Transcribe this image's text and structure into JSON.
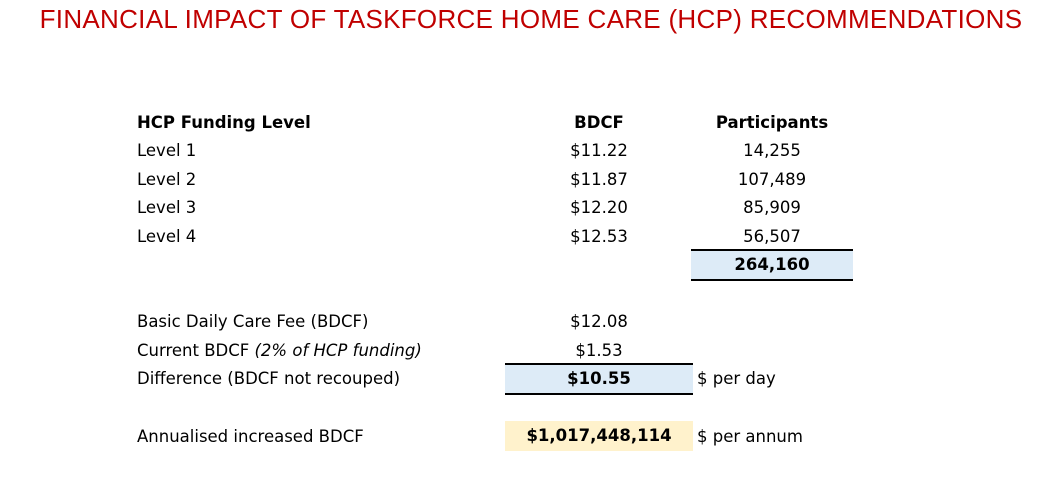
{
  "title": "FINANCIAL IMPACT OF TASKFORCE HOME CARE (HCP) RECOMMENDATIONS",
  "table": {
    "headers": [
      "HCP Funding Level",
      "BDCF",
      "Participants"
    ],
    "rows": [
      {
        "level": "Level 1",
        "bdcf": "$11.22",
        "participants": "14,255"
      },
      {
        "level": "Level 2",
        "bdcf": "$11.87",
        "participants": "107,489"
      },
      {
        "level": "Level 3",
        "bdcf": "$12.20",
        "participants": "85,909"
      },
      {
        "level": "Level 4",
        "bdcf": "$12.53",
        "participants": "56,507"
      }
    ],
    "total_participants": "264,160"
  },
  "summary": {
    "basic_label": "Basic Daily Care Fee (BDCF)",
    "basic_value": "$12.08",
    "current_label": "Current BDCF ",
    "current_note": "(2% of HCP funding)",
    "current_value": "$1.53",
    "diff_label": "Difference (BDCF not recouped)",
    "diff_value": "$10.55",
    "diff_unit": "$ per day",
    "annual_label": "Annualised increased BDCF",
    "annual_value": "$1,017,448,114",
    "annual_unit": "$ per annum"
  },
  "colors": {
    "title": "#C00000",
    "highlight_blue": "#DDEBF7",
    "highlight_gold": "#FFF2CC"
  }
}
